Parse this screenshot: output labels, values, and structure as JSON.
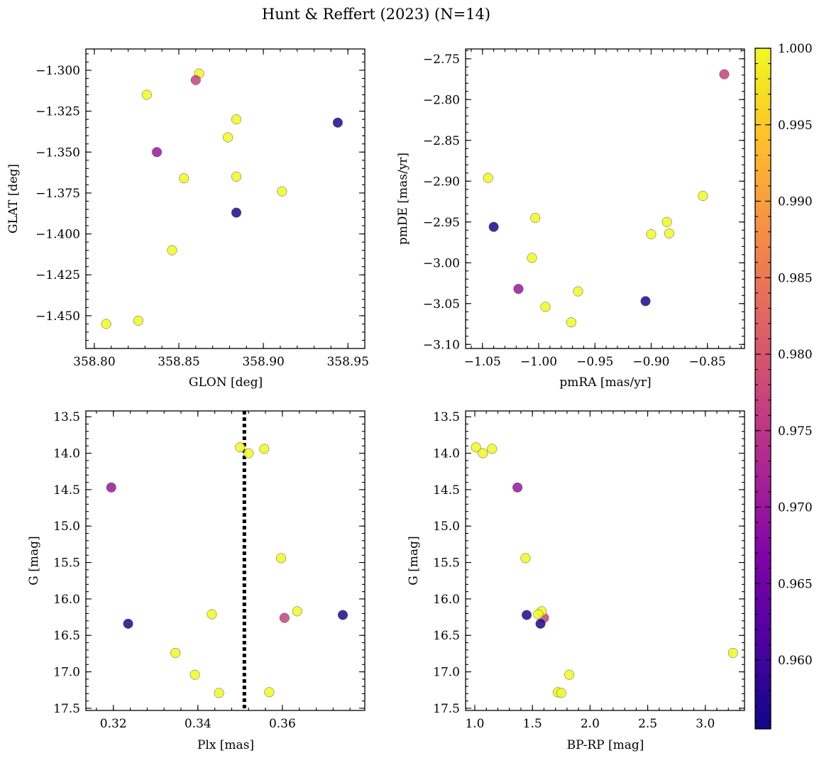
{
  "title": "Hunt & Reffert (2023) (N=14)",
  "colorbar": {
    "min": 0.9555,
    "max": 1.0,
    "ticks": [
      0.96,
      0.965,
      0.97,
      0.975,
      0.98,
      0.985,
      0.99,
      0.995,
      1.0
    ],
    "tick_labels": [
      "0.960",
      "0.965",
      "0.970",
      "0.975",
      "0.980",
      "0.985",
      "0.990",
      "0.995",
      "1.000"
    ],
    "colormap": "plasma",
    "low_color": "#0d0887",
    "high_color": "#f0f921"
  },
  "chart_data": [
    {
      "type": "scatter",
      "name": "glon-glat",
      "xlabel": "GLON [deg]",
      "ylabel": "GLAT [deg]",
      "xlim": [
        358.795,
        358.96
      ],
      "ylim": [
        -1.47,
        -1.287
      ],
      "x_inverted": false,
      "y_inverted": false,
      "xticks": [
        358.8,
        358.85,
        358.9,
        358.95
      ],
      "xtick_labels": [
        "358.80",
        "358.85",
        "358.90",
        "358.95"
      ],
      "yticks": [
        -1.3,
        -1.325,
        -1.35,
        -1.375,
        -1.4,
        -1.425,
        -1.45
      ],
      "ytick_labels": [
        "−1.300",
        "−1.325",
        "−1.350",
        "−1.375",
        "−1.400",
        "−1.425",
        "−1.450"
      ],
      "points": [
        {
          "x": 358.862,
          "y": -1.302,
          "c": 1.0
        },
        {
          "x": 358.86,
          "y": -1.306,
          "c": 0.977
        },
        {
          "x": 358.831,
          "y": -1.315,
          "c": 1.0
        },
        {
          "x": 358.884,
          "y": -1.33,
          "c": 1.0
        },
        {
          "x": 358.944,
          "y": -1.332,
          "c": 0.957
        },
        {
          "x": 358.879,
          "y": -1.341,
          "c": 1.0
        },
        {
          "x": 358.837,
          "y": -1.35,
          "c": 0.97
        },
        {
          "x": 358.853,
          "y": -1.366,
          "c": 1.0
        },
        {
          "x": 358.884,
          "y": -1.365,
          "c": 1.0
        },
        {
          "x": 358.911,
          "y": -1.374,
          "c": 1.0
        },
        {
          "x": 358.884,
          "y": -1.387,
          "c": 0.957
        },
        {
          "x": 358.846,
          "y": -1.41,
          "c": 1.0
        },
        {
          "x": 358.826,
          "y": -1.453,
          "c": 1.0
        },
        {
          "x": 358.807,
          "y": -1.455,
          "c": 1.0
        }
      ]
    },
    {
      "type": "scatter",
      "name": "pm",
      "xlabel": "pmRA [mas/yr]",
      "ylabel": "pmDE [mas/yr]",
      "xlim": [
        -1.065,
        -0.817
      ],
      "ylim": [
        -3.105,
        -2.738
      ],
      "x_inverted": false,
      "y_inverted": false,
      "xticks": [
        -1.05,
        -1.0,
        -0.95,
        -0.9,
        -0.85
      ],
      "xtick_labels": [
        "−1.05",
        "−1.00",
        "−0.95",
        "−0.90",
        "−0.85"
      ],
      "yticks": [
        -2.75,
        -2.8,
        -2.85,
        -2.9,
        -2.95,
        -3.0,
        -3.05,
        -3.1
      ],
      "ytick_labels": [
        "−2.75",
        "−2.80",
        "−2.85",
        "−2.90",
        "−2.95",
        "−3.00",
        "−3.05",
        "−3.10"
      ],
      "points": [
        {
          "x": -0.835,
          "y": -2.769,
          "c": 0.977
        },
        {
          "x": -1.045,
          "y": -2.896,
          "c": 1.0
        },
        {
          "x": -0.854,
          "y": -2.918,
          "c": 1.0
        },
        {
          "x": -1.003,
          "y": -2.945,
          "c": 1.0
        },
        {
          "x": -0.886,
          "y": -2.95,
          "c": 1.0
        },
        {
          "x": -1.04,
          "y": -2.956,
          "c": 0.957
        },
        {
          "x": -0.9,
          "y": -2.965,
          "c": 1.0
        },
        {
          "x": -0.884,
          "y": -2.964,
          "c": 1.0
        },
        {
          "x": -1.006,
          "y": -2.994,
          "c": 1.0
        },
        {
          "x": -1.018,
          "y": -3.032,
          "c": 0.97
        },
        {
          "x": -0.965,
          "y": -3.035,
          "c": 1.0
        },
        {
          "x": -0.905,
          "y": -3.047,
          "c": 0.957
        },
        {
          "x": -0.994,
          "y": -3.054,
          "c": 1.0
        },
        {
          "x": -0.971,
          "y": -3.073,
          "c": 1.0
        }
      ]
    },
    {
      "type": "scatter",
      "name": "plx-g",
      "xlabel": "Plx [mas]",
      "ylabel": "G [mag]",
      "xlim": [
        0.3135,
        0.3795
      ],
      "ylim": [
        17.53,
        13.42
      ],
      "x_inverted": false,
      "y_inverted": true,
      "vline": 0.351,
      "xticks": [
        0.32,
        0.34,
        0.36
      ],
      "xtick_labels": [
        "0.32",
        "0.34",
        "0.36"
      ],
      "yticks": [
        13.5,
        14.0,
        14.5,
        15.0,
        15.5,
        16.0,
        16.5,
        17.0,
        17.5
      ],
      "ytick_labels": [
        "13.5",
        "14.0",
        "14.5",
        "15.0",
        "15.5",
        "16.0",
        "16.5",
        "17.0",
        "17.5"
      ],
      "points": [
        {
          "x": 0.35,
          "y": 13.92,
          "c": 1.0
        },
        {
          "x": 0.352,
          "y": 14.0,
          "c": 1.0
        },
        {
          "x": 0.3557,
          "y": 13.94,
          "c": 1.0
        },
        {
          "x": 0.3195,
          "y": 14.47,
          "c": 0.97
        },
        {
          "x": 0.3597,
          "y": 15.44,
          "c": 1.0
        },
        {
          "x": 0.3635,
          "y": 16.17,
          "c": 1.0
        },
        {
          "x": 0.3433,
          "y": 16.21,
          "c": 1.0
        },
        {
          "x": 0.3743,
          "y": 16.22,
          "c": 0.957
        },
        {
          "x": 0.3605,
          "y": 16.26,
          "c": 0.977
        },
        {
          "x": 0.3235,
          "y": 16.34,
          "c": 0.957
        },
        {
          "x": 0.3347,
          "y": 16.74,
          "c": 1.0
        },
        {
          "x": 0.3393,
          "y": 17.04,
          "c": 1.0
        },
        {
          "x": 0.3569,
          "y": 17.28,
          "c": 1.0
        },
        {
          "x": 0.345,
          "y": 17.29,
          "c": 1.0
        }
      ]
    },
    {
      "type": "scatter",
      "name": "cmd",
      "xlabel": "BP-RP [mag]",
      "ylabel": "G [mag]",
      "xlim": [
        0.92,
        3.34
      ],
      "ylim": [
        17.53,
        13.42
      ],
      "x_inverted": false,
      "y_inverted": true,
      "xticks": [
        1.0,
        1.5,
        2.0,
        2.5,
        3.0
      ],
      "xtick_labels": [
        "1.0",
        "1.5",
        "2.0",
        "2.5",
        "3.0"
      ],
      "yticks": [
        13.5,
        14.0,
        14.5,
        15.0,
        15.5,
        16.0,
        16.5,
        17.0,
        17.5
      ],
      "ytick_labels": [
        "13.5",
        "14.0",
        "14.5",
        "15.0",
        "15.5",
        "16.0",
        "16.5",
        "17.0",
        "17.5"
      ],
      "points": [
        {
          "x": 1.01,
          "y": 13.92,
          "c": 1.0
        },
        {
          "x": 1.07,
          "y": 14.0,
          "c": 1.0
        },
        {
          "x": 1.15,
          "y": 13.94,
          "c": 1.0
        },
        {
          "x": 1.37,
          "y": 14.47,
          "c": 0.97
        },
        {
          "x": 1.44,
          "y": 15.44,
          "c": 1.0
        },
        {
          "x": 1.45,
          "y": 16.22,
          "c": 0.957
        },
        {
          "x": 1.6,
          "y": 16.26,
          "c": 0.977
        },
        {
          "x": 1.58,
          "y": 16.17,
          "c": 1.0
        },
        {
          "x": 1.55,
          "y": 16.21,
          "c": 1.0
        },
        {
          "x": 1.57,
          "y": 16.34,
          "c": 0.957
        },
        {
          "x": 3.24,
          "y": 16.74,
          "c": 1.0
        },
        {
          "x": 1.82,
          "y": 17.04,
          "c": 1.0
        },
        {
          "x": 1.72,
          "y": 17.28,
          "c": 1.0
        },
        {
          "x": 1.75,
          "y": 17.29,
          "c": 1.0
        }
      ]
    }
  ]
}
